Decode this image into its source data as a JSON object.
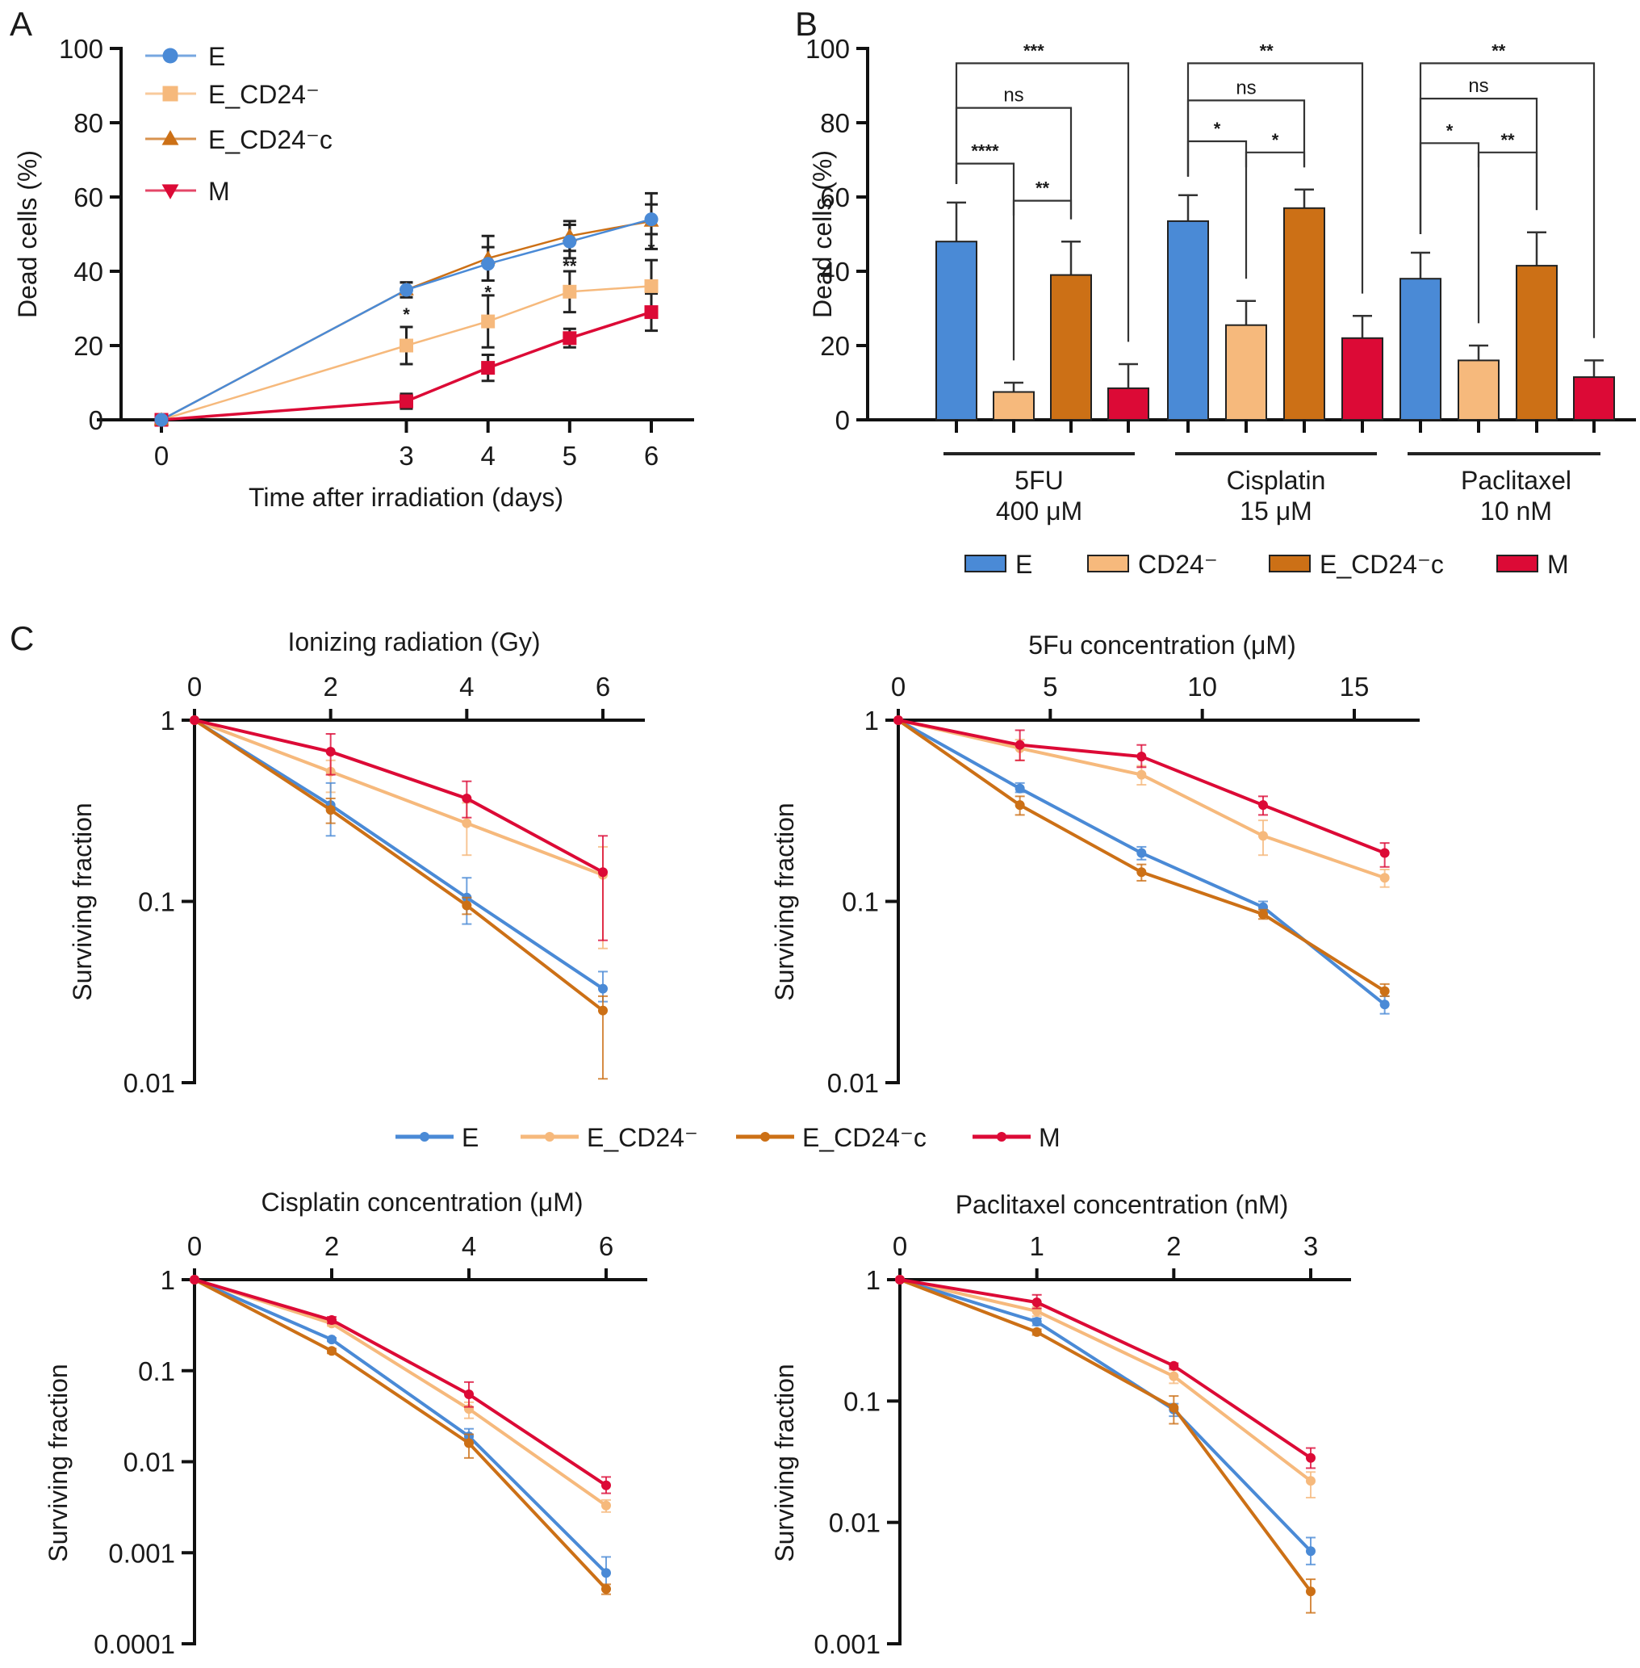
{
  "colors": {
    "E": "#4a8ad6",
    "E_CD24-": "#f6b97c",
    "E_CD24-c": "#cc7016",
    "M": "#dc0a36"
  },
  "chart_data": [
    {
      "id": "A",
      "panel_label": "A",
      "type": "line",
      "title": "",
      "xlabel": "Time after irradiation (days)",
      "ylabel": "Dead cells (%)",
      "x": [
        0,
        3,
        4,
        5,
        6
      ],
      "x_ticks": [
        "0",
        "3",
        "4",
        "5",
        "6"
      ],
      "xlim": [
        -0.5,
        6.6
      ],
      "ylim": [
        0,
        100
      ],
      "y_ticks": [
        "0",
        "20",
        "40",
        "60",
        "80",
        "100"
      ],
      "legend_position": "top-left",
      "series": [
        {
          "name": "E",
          "label": "E",
          "marker": "circle",
          "values": [
            0,
            35,
            42,
            48,
            54
          ],
          "err": [
            0,
            2,
            4.5,
            4.5,
            4
          ]
        },
        {
          "name": "E_CD24-",
          "label": "E_CD24⁻",
          "marker": "square",
          "values": [
            0,
            20,
            26.5,
            34.5,
            36
          ],
          "err": [
            0,
            5,
            7,
            5.5,
            7
          ]
        },
        {
          "name": "E_CD24-c",
          "label": "E_CD24⁻c",
          "marker": "triangle-up",
          "values": [
            0,
            35,
            43.5,
            49.5,
            53.5
          ],
          "err": [
            0,
            2,
            6,
            4,
            7.5
          ]
        },
        {
          "name": "M",
          "label": "M",
          "marker": "triangle-down",
          "values": [
            0,
            5,
            14,
            22,
            29
          ],
          "err": [
            0,
            2,
            3.5,
            2.5,
            5
          ]
        }
      ],
      "annotations": [
        {
          "x": 3,
          "y": 28.5,
          "text": "*"
        },
        {
          "x": 4,
          "y": 34.5,
          "text": "*"
        },
        {
          "x": 5,
          "y": 41.5,
          "text": "**"
        },
        {
          "x": 6,
          "y": 46,
          "text": "*"
        }
      ]
    },
    {
      "id": "B",
      "panel_label": "B",
      "type": "bar",
      "title": "",
      "xlabel": "",
      "ylabel": "Dead cells (%)",
      "ylim": [
        0,
        100
      ],
      "y_ticks": [
        "0",
        "20",
        "40",
        "60",
        "80",
        "100"
      ],
      "groups": [
        {
          "line1": "5FU",
          "line2": "400 μM"
        },
        {
          "line1": "Cisplatin",
          "line2": "15 μM"
        },
        {
          "line1": "Paclitaxel",
          "line2": "10 nM"
        }
      ],
      "legend_position": "bottom",
      "series": [
        {
          "name": "E",
          "label": "E",
          "values": [
            48,
            53.5,
            38
          ],
          "err": [
            10.5,
            7,
            7
          ]
        },
        {
          "name": "E_CD24-",
          "label": "CD24⁻",
          "values": [
            7.5,
            25.5,
            16
          ],
          "err": [
            2.5,
            6.5,
            4
          ]
        },
        {
          "name": "E_CD24-c",
          "label": "E_CD24⁻c",
          "values": [
            39,
            57,
            41.5
          ],
          "err": [
            9,
            5,
            9
          ]
        },
        {
          "name": "M",
          "label": "M",
          "values": [
            8.5,
            22,
            11.5
          ],
          "err": [
            6.5,
            6,
            4.5
          ]
        }
      ],
      "comparisons": [
        {
          "group": 0,
          "from": 0,
          "to": 3,
          "y": 96,
          "text": "***"
        },
        {
          "group": 0,
          "from": 0,
          "to": 2,
          "y": 84,
          "text": "ns"
        },
        {
          "group": 0,
          "from": 0,
          "to": 1,
          "y": 69,
          "text": "****"
        },
        {
          "group": 0,
          "from": 1,
          "to": 2,
          "y": 59,
          "text": "**"
        },
        {
          "group": 1,
          "from": 0,
          "to": 3,
          "y": 96,
          "text": "**"
        },
        {
          "group": 1,
          "from": 0,
          "to": 2,
          "y": 86,
          "text": "ns"
        },
        {
          "group": 1,
          "from": 0,
          "to": 1,
          "y": 75,
          "text": "*"
        },
        {
          "group": 1,
          "from": 1,
          "to": 2,
          "y": 72,
          "text": "*"
        },
        {
          "group": 2,
          "from": 0,
          "to": 3,
          "y": 96,
          "text": "**"
        },
        {
          "group": 2,
          "from": 0,
          "to": 2,
          "y": 86.5,
          "text": "ns"
        },
        {
          "group": 2,
          "from": 0,
          "to": 1,
          "y": 74.5,
          "text": "*"
        },
        {
          "group": 2,
          "from": 1,
          "to": 2,
          "y": 72,
          "text": "**"
        }
      ]
    },
    {
      "id": "C1",
      "panel_label": "C",
      "type": "line",
      "title": "Ionizing radiation (Gy)",
      "xlabel": "Ionizing radiation (Gy)",
      "ylabel": "Surviving fraction",
      "yscale": "log",
      "x": [
        0,
        2,
        4,
        6
      ],
      "x_ticks": [
        "0",
        "2",
        "4",
        "6"
      ],
      "xlim": [
        0,
        6.6
      ],
      "ylim": [
        0.01,
        1
      ],
      "y_ticks": [
        "1",
        "0.1",
        "0.01"
      ],
      "series": [
        {
          "name": "E",
          "values": [
            1,
            0.34,
            0.105,
            0.033
          ],
          "err_low": [
            1,
            0.23,
            0.075,
            0.028
          ],
          "err_high": [
            1,
            0.45,
            0.135,
            0.041
          ]
        },
        {
          "name": "E_CD24-",
          "values": [
            1,
            0.52,
            0.27,
            0.14
          ],
          "err_low": [
            1,
            0.4,
            0.18,
            0.055
          ],
          "err_high": [
            1,
            0.6,
            0.35,
            0.2
          ]
        },
        {
          "name": "E_CD24-c",
          "values": [
            1,
            0.32,
            0.095,
            0.025
          ],
          "err_low": [
            1,
            0.27,
            0.085,
            0.0105
          ],
          "err_high": [
            1,
            0.37,
            0.105,
            0.03
          ]
        },
        {
          "name": "M",
          "values": [
            1,
            0.67,
            0.37,
            0.145
          ],
          "err_low": [
            1,
            0.5,
            0.29,
            0.061
          ],
          "err_high": [
            1,
            0.84,
            0.46,
            0.23
          ]
        }
      ]
    },
    {
      "id": "C2",
      "panel_label": "",
      "type": "line",
      "title": "5Fu concentration (μM)",
      "xlabel": "5Fu concentration (μM)",
      "ylabel": "Surviving fraction",
      "yscale": "log",
      "x": [
        0,
        4,
        8,
        12,
        16
      ],
      "x_ticks": [
        "0",
        "5",
        "10",
        "15"
      ],
      "x_tick_values": [
        0,
        5,
        10,
        15
      ],
      "xlim": [
        0,
        17.3
      ],
      "ylim": [
        0.01,
        1
      ],
      "y_ticks": [
        "1",
        "0.1",
        "0.01"
      ],
      "series": [
        {
          "name": "E",
          "values": [
            1,
            0.42,
            0.185,
            0.093,
            0.027
          ],
          "err_low": [
            1,
            0.4,
            0.17,
            0.085,
            0.024
          ],
          "err_high": [
            1,
            0.45,
            0.2,
            0.1,
            0.03
          ]
        },
        {
          "name": "E_CD24-",
          "values": [
            1,
            0.7,
            0.5,
            0.23,
            0.135
          ],
          "err_low": [
            1,
            0.6,
            0.44,
            0.18,
            0.12
          ],
          "err_high": [
            1,
            0.78,
            0.56,
            0.28,
            0.15
          ]
        },
        {
          "name": "E_CD24-c",
          "values": [
            1,
            0.34,
            0.145,
            0.085,
            0.032
          ],
          "err_low": [
            1,
            0.3,
            0.13,
            0.08,
            0.03
          ],
          "err_high": [
            1,
            0.38,
            0.16,
            0.09,
            0.035
          ]
        },
        {
          "name": "M",
          "values": [
            1,
            0.73,
            0.63,
            0.34,
            0.185
          ],
          "err_low": [
            1,
            0.6,
            0.55,
            0.3,
            0.155
          ],
          "err_high": [
            1,
            0.88,
            0.73,
            0.38,
            0.21
          ]
        }
      ]
    },
    {
      "id": "C3",
      "panel_label": "",
      "type": "line",
      "title": "Cisplatin concentration (μM)",
      "xlabel": "Cisplatin concentration (μM)",
      "ylabel": "Surviving fraction",
      "yscale": "log",
      "x": [
        0,
        2,
        4,
        6
      ],
      "x_ticks": [
        "0",
        "2",
        "4",
        "6"
      ],
      "xlim": [
        0,
        6.6
      ],
      "ylim": [
        0.0001,
        1
      ],
      "y_ticks": [
        "1",
        "0.1",
        "0.01",
        "0.001",
        "0.0001"
      ],
      "series": [
        {
          "name": "E",
          "values": [
            1,
            0.22,
            0.019,
            0.0006
          ],
          "err_low": [
            1,
            0.21,
            0.016,
            0.0004
          ],
          "err_high": [
            1,
            0.23,
            0.023,
            0.0009
          ]
        },
        {
          "name": "E_CD24-",
          "values": [
            1,
            0.33,
            0.038,
            0.0033
          ],
          "err_low": [
            1,
            0.31,
            0.03,
            0.0028
          ],
          "err_high": [
            1,
            0.35,
            0.045,
            0.0038
          ]
        },
        {
          "name": "E_CD24-c",
          "values": [
            1,
            0.165,
            0.016,
            0.0004
          ],
          "err_low": [
            1,
            0.155,
            0.011,
            0.00035
          ],
          "err_high": [
            1,
            0.175,
            0.02,
            0.00045
          ]
        },
        {
          "name": "M",
          "values": [
            1,
            0.36,
            0.055,
            0.0055
          ],
          "err_low": [
            1,
            0.33,
            0.04,
            0.0045
          ],
          "err_high": [
            1,
            0.39,
            0.075,
            0.0068
          ]
        }
      ]
    },
    {
      "id": "C4",
      "panel_label": "",
      "type": "line",
      "title": "Paclitaxel concentration (nM)",
      "xlabel": "Paclitaxel concentration (nM)",
      "ylabel": "Surviving fraction",
      "yscale": "log",
      "x": [
        0,
        1,
        2,
        3
      ],
      "x_ticks": [
        "0",
        "1",
        "2",
        "3"
      ],
      "xlim": [
        0,
        3.3
      ],
      "ylim": [
        0.001,
        1
      ],
      "y_ticks": [
        "1",
        "0.1",
        "0.01",
        "0.001"
      ],
      "series": [
        {
          "name": "E",
          "values": [
            1,
            0.45,
            0.085,
            0.0058
          ],
          "err_low": [
            1,
            0.42,
            0.075,
            0.0045
          ],
          "err_high": [
            1,
            0.48,
            0.095,
            0.0075
          ]
        },
        {
          "name": "E_CD24-",
          "values": [
            1,
            0.55,
            0.16,
            0.022
          ],
          "err_low": [
            1,
            0.5,
            0.14,
            0.016
          ],
          "err_high": [
            1,
            0.6,
            0.18,
            0.026
          ]
        },
        {
          "name": "E_CD24-c",
          "values": [
            1,
            0.37,
            0.088,
            0.0027
          ],
          "err_low": [
            1,
            0.35,
            0.065,
            0.0018
          ],
          "err_high": [
            1,
            0.39,
            0.11,
            0.0034
          ]
        },
        {
          "name": "M",
          "values": [
            1,
            0.65,
            0.195,
            0.034
          ],
          "err_low": [
            1,
            0.58,
            0.185,
            0.028
          ],
          "err_high": [
            1,
            0.75,
            0.205,
            0.041
          ]
        }
      ]
    }
  ],
  "legend_C": {
    "items": [
      {
        "name": "E",
        "label": "E"
      },
      {
        "name": "E_CD24-",
        "label": "E_CD24⁻"
      },
      {
        "name": "E_CD24-c",
        "label": "E_CD24⁻c"
      },
      {
        "name": "M",
        "label": "M"
      }
    ]
  }
}
